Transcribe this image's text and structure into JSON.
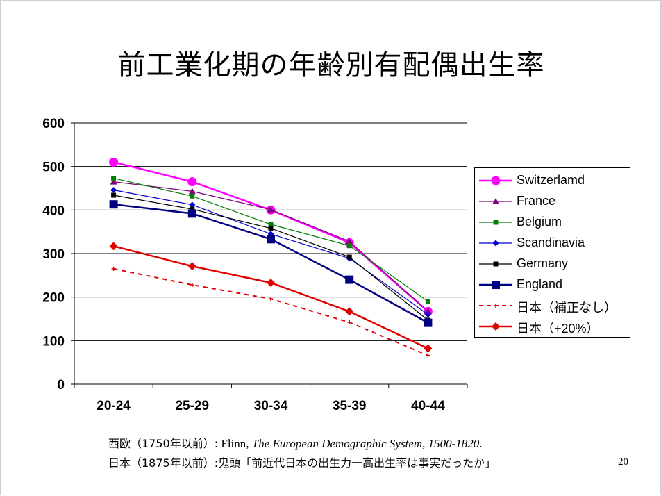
{
  "slide": {
    "title": "前工業化期の年齢別有配偶出生率",
    "page_number": "20"
  },
  "sources": {
    "line1_prefix": "西欧（1750年以前）:",
    "line1_author": " Flinn, ",
    "line1_work": "The European Demographic System, 1500-1820",
    "line1_end": ".",
    "line2_prefix": "日本（1875年以前）:",
    "line2_text": "鬼頭「前近代日本の出生力一高出生率は事実だったか」"
  },
  "chart_data": {
    "type": "line",
    "title": "",
    "xlabel": "",
    "ylabel": "",
    "categories": [
      "20-24",
      "25-29",
      "30-34",
      "35-39",
      "40-44"
    ],
    "ylim": [
      0,
      600
    ],
    "yticks": [
      0,
      100,
      200,
      300,
      400,
      500,
      600
    ],
    "grid": true,
    "legend_position": "right",
    "series": [
      {
        "name": "Switzerlamd",
        "values": [
          510,
          465,
          400,
          325,
          167
        ],
        "color": "#ff00ff",
        "marker": "circle",
        "dash": false,
        "width": 2.5
      },
      {
        "name": "France",
        "values": [
          465,
          443,
          401,
          328,
          168
        ],
        "color": "#800080",
        "marker": "triangle",
        "dash": false,
        "width": 1.2
      },
      {
        "name": "Belgium",
        "values": [
          473,
          432,
          367,
          318,
          190
        ],
        "color": "#008000",
        "marker": "square-small",
        "dash": false,
        "width": 1.2
      },
      {
        "name": "Scandinavia",
        "values": [
          446,
          412,
          345,
          289,
          160
        ],
        "color": "#0000cd",
        "marker": "diamond-small",
        "dash": false,
        "width": 1.2
      },
      {
        "name": "Germany",
        "values": [
          434,
          402,
          358,
          292,
          147
        ],
        "color": "#000000",
        "marker": "square-small",
        "dash": false,
        "width": 1.2
      },
      {
        "name": "England",
        "values": [
          413,
          392,
          333,
          240,
          141
        ],
        "color": "#000080",
        "marker": "square",
        "dash": false,
        "width": 2.5
      },
      {
        "name": "日本（補正なし）",
        "values": [
          265,
          228,
          196,
          142,
          66
        ],
        "color": "#e00000",
        "marker": "plus",
        "dash": true,
        "width": 2
      },
      {
        "name": "日本（+20%）",
        "values": [
          317,
          271,
          233,
          167,
          82
        ],
        "color": "#e00000",
        "marker": "diamond",
        "dash": false,
        "width": 2.5
      }
    ]
  }
}
